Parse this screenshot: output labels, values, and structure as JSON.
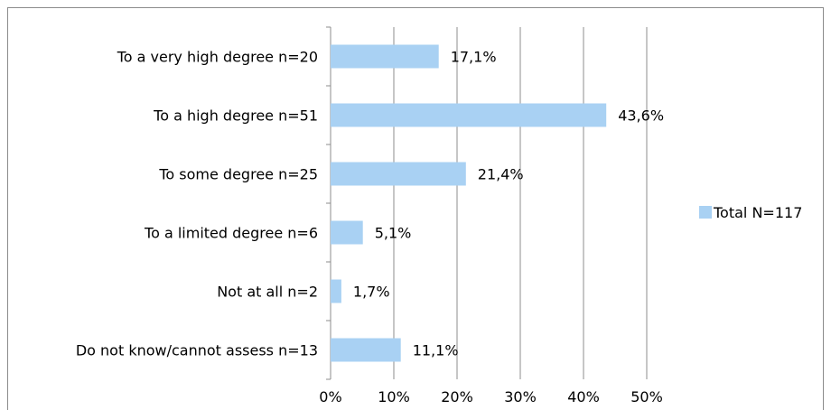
{
  "chart_data": {
    "type": "bar",
    "orientation": "horizontal",
    "categories": [
      "To a very high degree n=20",
      "To a high degree n=51",
      "To some degree n=25",
      "To a limited degree n=6",
      "Not at all  n=2",
      "Do not know/cannot assess n=13"
    ],
    "series": [
      {
        "name": "Total N=117",
        "values": [
          17.1,
          43.6,
          21.4,
          5.1,
          1.7,
          11.1
        ],
        "labels": [
          "17,1%",
          "43,6%",
          "21,4%",
          "5,1%",
          "1,7%",
          "11,1%"
        ],
        "color": "#a9d1f3"
      }
    ],
    "xlim": [
      0,
      50
    ],
    "x_ticks": [
      "0%",
      "10%",
      "20%",
      "30%",
      "40%",
      "50%"
    ],
    "grid": "vertical",
    "gridline_color": "#8c8c8c",
    "legend_position": "right"
  }
}
